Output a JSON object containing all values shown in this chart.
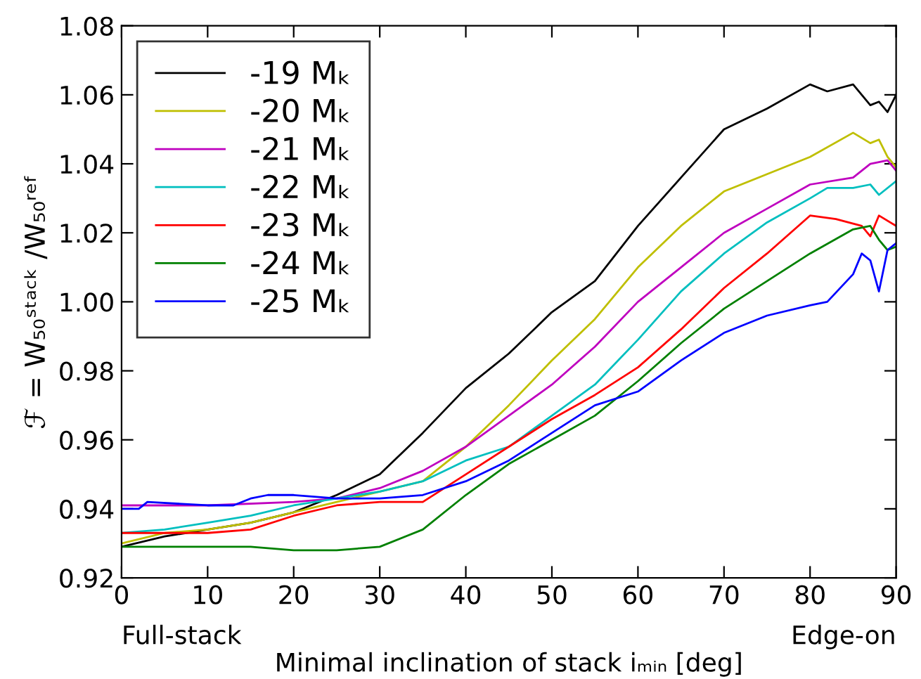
{
  "chart_data": {
    "type": "line",
    "xlabel": "Minimal inclination of stack iₘᵢₙ [deg]",
    "ylabel": "ℱ = W₅₀ˢᵗᵃᶜᵏ /W₅₀ʳᵉᶠ",
    "annotations": [
      "Full-stack",
      "Edge-on"
    ],
    "xlim": [
      0,
      90
    ],
    "xticks": [
      0,
      10,
      20,
      30,
      40,
      50,
      60,
      70,
      80,
      90
    ],
    "ylim": [
      0.92,
      1.08
    ],
    "yticks": [
      {
        "value": 0.92,
        "label": "0.92"
      },
      {
        "value": 0.94,
        "label": "0.94"
      },
      {
        "value": 0.96,
        "label": "0.96"
      },
      {
        "value": 0.98,
        "label": "0.98"
      },
      {
        "value": 1.0,
        "label": "1.00"
      },
      {
        "value": 1.02,
        "label": "1.02"
      },
      {
        "value": 1.04,
        "label": "1.04"
      },
      {
        "value": 1.06,
        "label": "1.06"
      },
      {
        "value": 1.08,
        "label": "1.08"
      }
    ],
    "grid": false,
    "legend": "top left",
    "marker": "none",
    "line_style": "solid",
    "series": [
      {
        "name": "-19 Mₖ",
        "color": "#000000",
        "x": [
          0,
          5,
          10,
          15,
          20,
          25,
          30,
          35,
          40,
          45,
          50,
          55,
          60,
          65,
          70,
          75,
          80,
          82,
          85,
          87,
          88,
          89,
          90
        ],
        "values": [
          0.929,
          0.932,
          0.934,
          0.936,
          0.939,
          0.944,
          0.95,
          0.962,
          0.975,
          0.985,
          0.997,
          1.006,
          1.022,
          1.036,
          1.05,
          1.056,
          1.063,
          1.061,
          1.063,
          1.057,
          1.058,
          1.055,
          1.06
        ]
      },
      {
        "name": "-20 Mₖ",
        "color": "#bfbf00",
        "x": [
          0,
          5,
          10,
          15,
          20,
          25,
          30,
          35,
          40,
          45,
          50,
          55,
          60,
          65,
          70,
          75,
          80,
          85,
          87,
          88,
          89,
          90
        ],
        "values": [
          0.93,
          0.933,
          0.934,
          0.936,
          0.939,
          0.942,
          0.945,
          0.948,
          0.958,
          0.97,
          0.983,
          0.995,
          1.01,
          1.022,
          1.032,
          1.037,
          1.042,
          1.049,
          1.046,
          1.047,
          1.042,
          1.039
        ]
      },
      {
        "name": "-21 Mₖ",
        "color": "#bf00bf",
        "x": [
          0,
          10,
          20,
          25,
          30,
          35,
          40,
          45,
          50,
          55,
          60,
          65,
          70,
          75,
          80,
          85,
          87,
          89,
          90
        ],
        "values": [
          0.941,
          0.941,
          0.942,
          0.943,
          0.946,
          0.951,
          0.958,
          0.967,
          0.976,
          0.987,
          1.0,
          1.01,
          1.02,
          1.027,
          1.034,
          1.036,
          1.04,
          1.041,
          1.038
        ]
      },
      {
        "name": "-22 Mₖ",
        "color": "#00bfbf",
        "x": [
          0,
          5,
          10,
          15,
          20,
          25,
          30,
          35,
          40,
          45,
          50,
          55,
          60,
          65,
          70,
          75,
          80,
          82,
          85,
          87,
          88,
          90
        ],
        "values": [
          0.933,
          0.934,
          0.936,
          0.938,
          0.941,
          0.943,
          0.945,
          0.948,
          0.954,
          0.958,
          0.967,
          0.976,
          0.989,
          1.003,
          1.014,
          1.023,
          1.03,
          1.033,
          1.033,
          1.034,
          1.031,
          1.035
        ]
      },
      {
        "name": "-23 Mₖ",
        "color": "#ff0000",
        "x": [
          0,
          5,
          10,
          15,
          20,
          25,
          30,
          35,
          40,
          45,
          50,
          55,
          60,
          65,
          70,
          75,
          80,
          83,
          86,
          87,
          88,
          90
        ],
        "values": [
          0.933,
          0.933,
          0.933,
          0.934,
          0.938,
          0.941,
          0.942,
          0.942,
          0.95,
          0.958,
          0.966,
          0.973,
          0.981,
          0.992,
          1.004,
          1.014,
          1.025,
          1.024,
          1.022,
          1.019,
          1.025,
          1.022
        ]
      },
      {
        "name": "-24 Mₖ",
        "color": "#008000",
        "x": [
          0,
          10,
          15,
          20,
          25,
          30,
          35,
          40,
          45,
          50,
          55,
          60,
          65,
          70,
          75,
          80,
          85,
          87,
          88,
          89,
          90
        ],
        "values": [
          0.929,
          0.929,
          0.929,
          0.928,
          0.928,
          0.929,
          0.934,
          0.944,
          0.953,
          0.96,
          0.967,
          0.977,
          0.988,
          0.998,
          1.006,
          1.014,
          1.021,
          1.022,
          1.018,
          1.015,
          1.016
        ]
      },
      {
        "name": "-25 Mₖ",
        "color": "#0000ff",
        "x": [
          0,
          2,
          3,
          10,
          13,
          15,
          17,
          20,
          25,
          30,
          35,
          40,
          45,
          50,
          55,
          60,
          65,
          70,
          75,
          80,
          82,
          85,
          86,
          87,
          88,
          89,
          90
        ],
        "values": [
          0.94,
          0.94,
          0.942,
          0.941,
          0.941,
          0.943,
          0.944,
          0.944,
          0.943,
          0.943,
          0.944,
          0.948,
          0.954,
          0.962,
          0.97,
          0.974,
          0.983,
          0.991,
          0.996,
          0.999,
          1.0,
          1.008,
          1.014,
          1.012,
          1.003,
          1.015,
          1.017
        ]
      }
    ]
  }
}
